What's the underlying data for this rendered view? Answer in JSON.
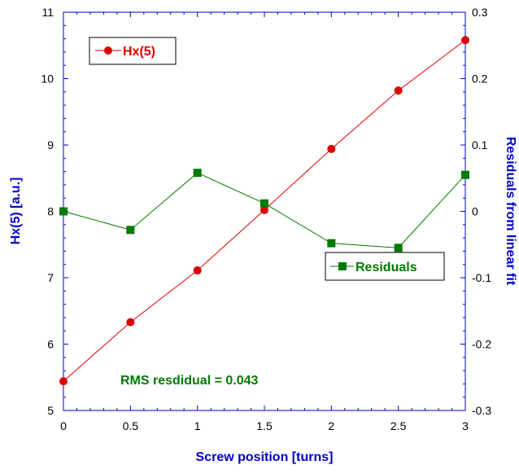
{
  "chart_data": {
    "type": "line",
    "x": [
      0,
      0.5,
      1,
      1.5,
      2,
      2.5,
      3
    ],
    "xlim": [
      0,
      3
    ],
    "x_ticks": [
      "0",
      "0.5",
      "1",
      "1.5",
      "2",
      "2.5",
      "3"
    ],
    "xlabel": "Screw position [turns]",
    "ylabel": "Hx(5) [a.u.]",
    "ylim": [
      5,
      11
    ],
    "y_ticks": [
      "5",
      "6",
      "7",
      "8",
      "9",
      "10",
      "11"
    ],
    "y2label": "Residuals from linear fit",
    "y2lim": [
      -0.3,
      0.3
    ],
    "y2_ticks": [
      "0.3",
      "0.2",
      "0.1",
      "0",
      "-0.1",
      "-0.2",
      "-0.3"
    ],
    "grid": false,
    "series": [
      {
        "name": "Hx(5)",
        "axis": "left",
        "marker": "circle",
        "color": "#dd0000",
        "values": [
          5.44,
          6.33,
          7.11,
          8.02,
          8.94,
          9.82,
          10.58
        ]
      },
      {
        "name": "Residuals",
        "axis": "right",
        "marker": "square",
        "color": "#007a00",
        "values": [
          0.0,
          -0.028,
          0.058,
          0.012,
          -0.048,
          -0.055,
          0.055
        ]
      }
    ],
    "annotation": "RMS resdidual = 0.043",
    "axis_color": "#0000cc",
    "axis_title_color": "#0000cc",
    "legend_positions": [
      "top-left",
      "right-middle"
    ]
  }
}
